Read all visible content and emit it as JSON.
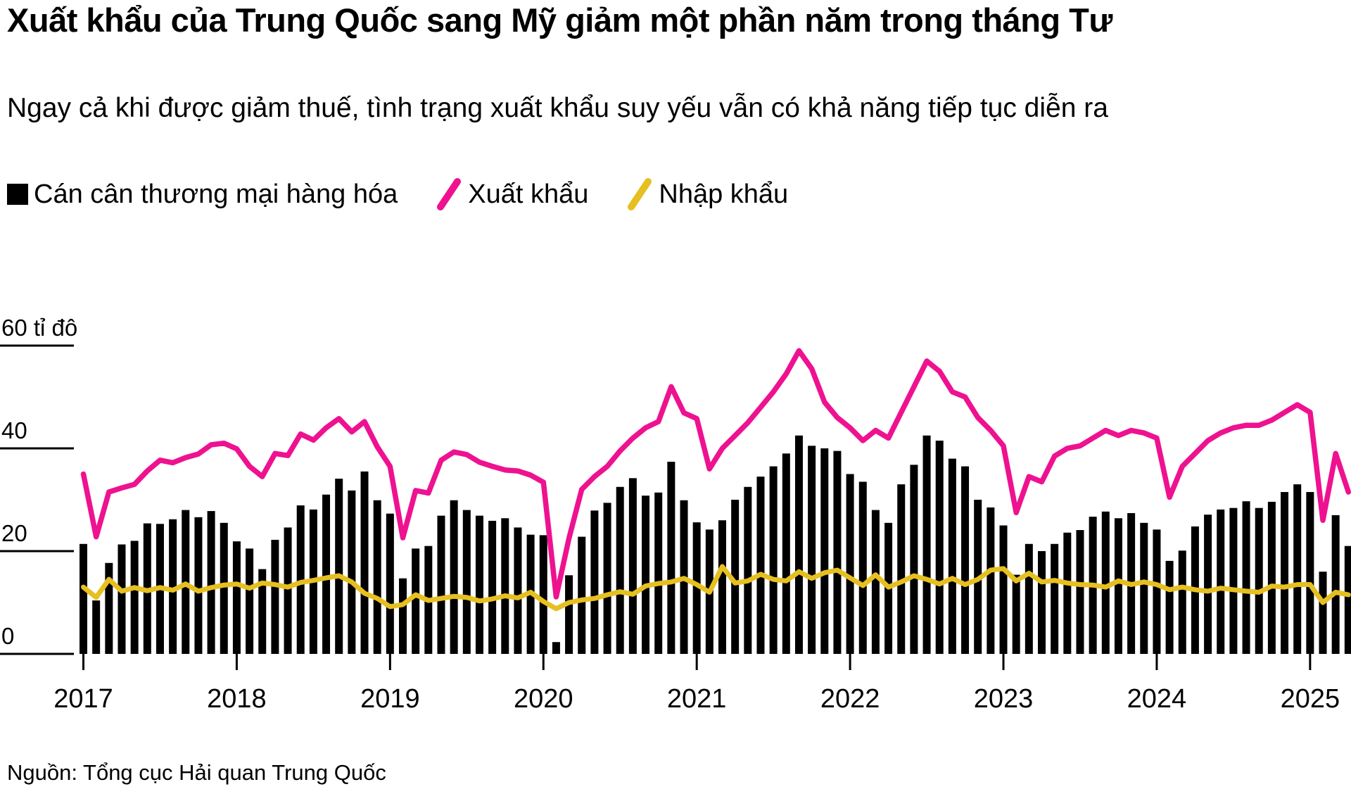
{
  "title": "Xuất khẩu của Trung Quốc sang Mỹ giảm một phần năm trong tháng Tư",
  "subtitle": "Ngay cả khi được giảm thuế, tình trạng xuất khẩu suy yếu vẫn có khả năng tiếp tục diễn ra",
  "source": "Nguồn: Tổng cục Hải quan Trung Quốc",
  "colors": {
    "bars": "#000000",
    "exports": "#EE1290",
    "imports": "#E6BF20"
  },
  "legend": [
    {
      "label": "Cán cân thương mại hàng hóa",
      "swatch": "square",
      "color": "#000000"
    },
    {
      "label": "Xuất khẩu",
      "swatch": "slash",
      "color": "#EE1290"
    },
    {
      "label": "Nhập khẩu",
      "swatch": "slash",
      "color": "#E6BF20"
    }
  ],
  "chart_data": {
    "type": "bar+line combo, monthly Jan 2017 - Apr 2025, values in billions USD",
    "x_tick_labels": [
      "2017",
      "2018",
      "2019",
      "2020",
      "2021",
      "2022",
      "2023",
      "2024",
      "2025"
    ],
    "y_ticks": [
      0,
      20,
      40,
      60
    ],
    "y_tick_labels": [
      "0",
      "20",
      "40",
      "60 tỉ đô"
    ],
    "ylim": [
      0,
      60
    ],
    "grid": false,
    "legend_position": "top",
    "series": [
      {
        "name": "Cán cân thương mại hàng hóa",
        "type": "bar",
        "color": "#000000",
        "values": [
          21.4,
          10.4,
          17.7,
          21.3,
          22.0,
          25.4,
          25.3,
          26.2,
          28.0,
          26.6,
          27.8,
          25.5,
          21.9,
          20.5,
          16.5,
          22.2,
          24.6,
          28.9,
          28.1,
          31.0,
          34.1,
          31.8,
          35.5,
          29.9,
          27.3,
          14.7,
          20.5,
          21.0,
          26.9,
          29.9,
          28.0,
          26.9,
          25.9,
          26.4,
          24.6,
          23.2,
          23.1,
          2.3,
          15.3,
          22.8,
          27.9,
          29.4,
          32.5,
          34.2,
          30.8,
          31.4,
          37.4,
          29.9,
          25.6,
          24.2,
          26.0,
          30.0,
          32.5,
          34.5,
          36.5,
          39.0,
          42.5,
          40.5,
          40.0,
          39.5,
          35.0,
          33.5,
          28.0,
          25.5,
          33.0,
          36.8,
          42.5,
          41.5,
          38.0,
          36.5,
          30.0,
          28.5,
          25.0,
          15.4,
          21.4,
          20.0,
          21.4,
          23.6,
          24.1,
          26.7,
          27.7,
          26.4,
          27.4,
          25.5,
          24.2,
          18.1,
          20.1,
          24.8,
          27.1,
          28.1,
          28.4,
          29.7,
          28.4,
          29.6,
          31.5,
          33.0,
          31.5,
          16.0,
          27.0,
          21.0
        ]
      },
      {
        "name": "Xuất khẩu",
        "type": "line",
        "color": "#EE1290",
        "values": [
          35.0,
          22.8,
          31.5,
          32.3,
          33.0,
          35.6,
          37.7,
          37.2,
          38.2,
          38.9,
          40.7,
          41.0,
          39.9,
          36.5,
          34.5,
          39.0,
          38.6,
          42.8,
          41.6,
          44.0,
          45.8,
          43.2,
          45.2,
          40.3,
          36.5,
          22.6,
          31.8,
          31.3,
          37.7,
          39.3,
          38.8,
          37.3,
          36.5,
          35.8,
          35.6,
          34.8,
          33.4,
          11.1,
          22.5,
          32.0,
          34.5,
          36.5,
          39.5,
          42.0,
          44.0,
          45.2,
          52.0,
          46.9,
          45.8,
          36.0,
          40.0,
          42.5,
          45.0,
          48.0,
          51.0,
          54.5,
          59.0,
          55.5,
          49.0,
          46.0,
          44.0,
          41.5,
          43.5,
          42.0,
          47.0,
          52.0,
          57.0,
          55.0,
          51.0,
          50.0,
          46.0,
          43.5,
          40.5,
          27.5,
          34.5,
          33.5,
          38.5,
          40.0,
          40.5,
          42.0,
          43.5,
          42.5,
          43.5,
          43.0,
          42.0,
          30.5,
          36.5,
          39.0,
          41.5,
          43.0,
          44.0,
          44.5,
          44.5,
          45.5,
          47.0,
          48.5,
          47.0,
          26.0,
          39.0,
          31.5
        ]
      },
      {
        "name": "Nhập khẩu",
        "type": "line",
        "color": "#E6BF20",
        "values": [
          13.0,
          11.0,
          14.5,
          12.2,
          12.9,
          12.3,
          12.9,
          12.4,
          13.6,
          12.2,
          12.9,
          13.4,
          13.6,
          12.8,
          13.8,
          13.5,
          13.0,
          13.9,
          14.3,
          14.8,
          15.2,
          14.0,
          11.8,
          10.8,
          9.2,
          9.6,
          11.5,
          10.4,
          10.8,
          11.2,
          11.0,
          10.3,
          10.7,
          11.3,
          10.9,
          12.0,
          10.2,
          8.8,
          10.0,
          10.5,
          10.8,
          11.5,
          12.1,
          11.6,
          13.2,
          13.7,
          14.0,
          14.7,
          13.5,
          12.0,
          17.0,
          13.8,
          14.2,
          15.5,
          14.5,
          14.2,
          16.0,
          14.7,
          15.8,
          16.3,
          14.8,
          13.3,
          15.4,
          13.0,
          14.0,
          15.2,
          14.5,
          13.6,
          14.7,
          13.5,
          14.5,
          16.3,
          16.6,
          14.2,
          15.7,
          14.0,
          14.3,
          13.8,
          13.5,
          13.4,
          13.0,
          14.2,
          13.5,
          14.0,
          13.5,
          12.5,
          13.0,
          12.5,
          12.2,
          12.8,
          12.5,
          12.2,
          12.0,
          13.2,
          13.0,
          13.5,
          13.5,
          10.0,
          12.0,
          11.5
        ]
      }
    ]
  }
}
